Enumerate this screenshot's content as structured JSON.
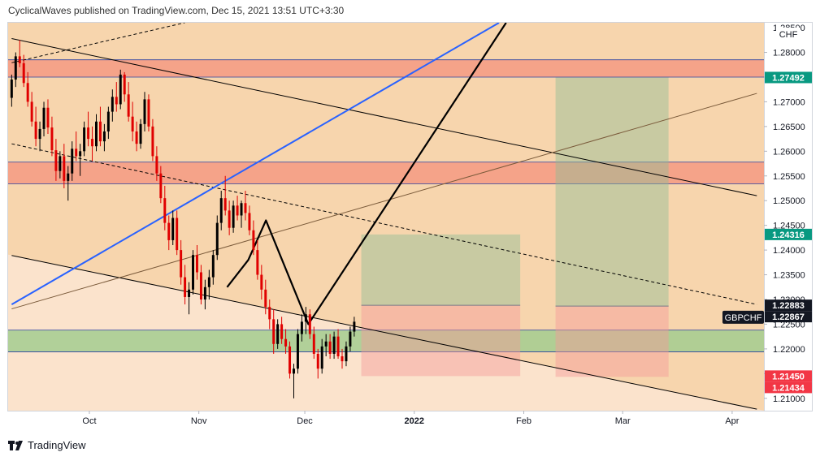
{
  "header": {
    "publisher_text": "CyclicalWaves published on TradingView.com, Dec 15, 2021 13:51 UTC+3:30"
  },
  "footer": {
    "brand": "TradingView",
    "logo_icon": "tradingview-logo-icon"
  },
  "chart_data": {
    "type": "candlestick",
    "symbol": "GBPCHF",
    "currency": "CHF",
    "top_tick_partial": "1.28500",
    "y_ticks": [
      "1.28000",
      "1.27500",
      "1.27000",
      "1.26500",
      "1.26000",
      "1.25500",
      "1.25000",
      "1.24500",
      "1.24000",
      "1.23500",
      "1.23000",
      "1.22500",
      "1.22000",
      "1.21500",
      "1.21000"
    ],
    "x_ticks": [
      {
        "label": "Oct",
        "date": "2021-10-01"
      },
      {
        "label": "Nov",
        "date": "2021-11-01"
      },
      {
        "label": "Dec",
        "date": "2021-12-01"
      },
      {
        "label": "2022",
        "date": "2022-01-01"
      },
      {
        "label": "Feb",
        "date": "2022-02-01"
      },
      {
        "label": "Mar",
        "date": "2022-03-01"
      },
      {
        "label": "Apr",
        "date": "2022-04-01"
      }
    ],
    "ylim": [
      1.2075,
      1.286
    ],
    "xlim": [
      "2021-09-08",
      "2022-04-10"
    ],
    "price_labels": [
      {
        "value": "1.27492",
        "color": "#089981"
      },
      {
        "value": "1.24316",
        "color": "#089981"
      },
      {
        "value": "1.22883",
        "color": "#131722"
      },
      {
        "value": "1.22867",
        "color": "#131722"
      },
      {
        "value": "1.21450",
        "color": "#f23645"
      },
      {
        "value": "1.21434",
        "color": "#f23645"
      }
    ],
    "symbol_label_price": 1.2264,
    "background": {
      "upper_color": "#f7d5ad",
      "lower_color": "#fbe3cc"
    },
    "zones": [
      {
        "kind": "supply",
        "from": 1.275,
        "to": 1.2785,
        "color": "#f59a83"
      },
      {
        "kind": "supply",
        "from": 1.2534,
        "to": 1.2578,
        "color": "#f59a83"
      },
      {
        "kind": "demand",
        "from": 1.2194,
        "to": 1.2238,
        "color": "#a3cd8f"
      }
    ],
    "positions": [
      {
        "start": "2021-12-17",
        "end": "2022-01-31",
        "entry": 1.22883,
        "target": 1.24316,
        "stop": 1.2145
      },
      {
        "start": "2022-02-10",
        "end": "2022-03-14",
        "entry": 1.22867,
        "target": 1.27492,
        "stop": 1.21434
      }
    ],
    "lines": [
      {
        "style": "solid",
        "color": "#000000",
        "p1": [
          "2021-09-09",
          1.2828
        ],
        "p2": [
          "2022-04-08",
          1.251
        ]
      },
      {
        "style": "solid",
        "color": "#000000",
        "p1": [
          "2021-09-09",
          1.2389
        ],
        "p2": [
          "2022-04-08",
          1.2078
        ]
      },
      {
        "style": "dashed",
        "color": "#000000",
        "p1": [
          "2021-09-09",
          1.2615
        ],
        "p2": [
          "2022-04-08",
          1.229
        ]
      },
      {
        "style": "dashed",
        "color": "#000000",
        "p1": [
          "2021-09-09",
          1.2779
        ],
        "p2": [
          "2021-10-28",
          1.286
        ]
      },
      {
        "style": "solid",
        "color": "#2962ff",
        "p1": [
          "2021-09-09",
          1.229
        ],
        "p2": [
          "2022-01-25",
          1.286
        ]
      },
      {
        "style": "solid",
        "color": "#7a5a3a",
        "p1": [
          "2021-09-09",
          1.2281
        ],
        "p2": [
          "2022-04-08",
          1.2717
        ]
      },
      {
        "style": "projection",
        "color": "#000000",
        "points": [
          [
            "2021-11-09",
            1.2325
          ],
          [
            "2021-11-15",
            1.238
          ],
          [
            "2021-11-20",
            1.246
          ],
          [
            "2021-12-02",
            1.225
          ],
          [
            "2022-01-27",
            1.286
          ]
        ]
      }
    ],
    "candles_range": {
      "start": "2021-09-09",
      "end": "2021-12-15"
    },
    "candles": [
      [
        1.2708,
        1.2755,
        1.269,
        1.2745
      ],
      [
        1.2745,
        1.28,
        1.273,
        1.2792
      ],
      [
        1.2792,
        1.2825,
        1.277,
        1.2778
      ],
      [
        1.2778,
        1.2795,
        1.273,
        1.2738
      ],
      [
        1.2738,
        1.276,
        1.269,
        1.27
      ],
      [
        1.27,
        1.272,
        1.265,
        1.266
      ],
      [
        1.266,
        1.269,
        1.261,
        1.2625
      ],
      [
        1.2625,
        1.266,
        1.26,
        1.2645
      ],
      [
        1.2645,
        1.27,
        1.263,
        1.2688
      ],
      [
        1.2688,
        1.2705,
        1.2635,
        1.2648
      ],
      [
        1.2648,
        1.267,
        1.259,
        1.2602
      ],
      [
        1.2602,
        1.2625,
        1.254,
        1.256
      ],
      [
        1.256,
        1.26,
        1.2545,
        1.259
      ],
      [
        1.259,
        1.2615,
        1.2525,
        1.254
      ],
      [
        1.254,
        1.257,
        1.25,
        1.2555
      ],
      [
        1.2555,
        1.262,
        1.254,
        1.2605
      ],
      [
        1.2605,
        1.264,
        1.258,
        1.259
      ],
      [
        1.259,
        1.2615,
        1.255,
        1.26
      ],
      [
        1.26,
        1.266,
        1.259,
        1.2648
      ],
      [
        1.2648,
        1.268,
        1.261,
        1.2625
      ],
      [
        1.2625,
        1.265,
        1.258,
        1.261
      ],
      [
        1.261,
        1.2675,
        1.26,
        1.266
      ],
      [
        1.266,
        1.269,
        1.261,
        1.262
      ],
      [
        1.262,
        1.2655,
        1.26,
        1.264
      ],
      [
        1.264,
        1.269,
        1.2625,
        1.268
      ],
      [
        1.268,
        1.2725,
        1.266,
        1.271
      ],
      [
        1.271,
        1.274,
        1.268,
        1.2695
      ],
      [
        1.2695,
        1.2765,
        1.2685,
        1.2755
      ],
      [
        1.2755,
        1.276,
        1.27,
        1.2715
      ],
      [
        1.2715,
        1.274,
        1.266,
        1.267
      ],
      [
        1.267,
        1.27,
        1.262,
        1.264
      ],
      [
        1.264,
        1.266,
        1.26,
        1.2615
      ],
      [
        1.2615,
        1.2665,
        1.2605,
        1.2655
      ],
      [
        1.2655,
        1.272,
        1.264,
        1.2705
      ],
      [
        1.2705,
        1.2715,
        1.264,
        1.265
      ],
      [
        1.265,
        1.2665,
        1.258,
        1.259
      ],
      [
        1.259,
        1.261,
        1.254,
        1.2555
      ],
      [
        1.2555,
        1.257,
        1.2495,
        1.2505
      ],
      [
        1.2505,
        1.253,
        1.244,
        1.2455
      ],
      [
        1.2455,
        1.247,
        1.24,
        1.242
      ],
      [
        1.242,
        1.248,
        1.241,
        1.2465
      ],
      [
        1.2465,
        1.248,
        1.239,
        1.24
      ],
      [
        1.24,
        1.242,
        1.233,
        1.2345
      ],
      [
        1.2345,
        1.237,
        1.229,
        1.2305
      ],
      [
        1.2305,
        1.2335,
        1.227,
        1.232
      ],
      [
        1.232,
        1.24,
        1.231,
        1.239
      ],
      [
        1.239,
        1.241,
        1.234,
        1.2355
      ],
      [
        1.2355,
        1.237,
        1.229,
        1.23
      ],
      [
        1.23,
        1.234,
        1.228,
        1.2325
      ],
      [
        1.2325,
        1.236,
        1.23,
        1.2345
      ],
      [
        1.2345,
        1.24,
        1.233,
        1.239
      ],
      [
        1.239,
        1.247,
        1.238,
        1.2455
      ],
      [
        1.2455,
        1.252,
        1.244,
        1.2505
      ],
      [
        1.2505,
        1.255,
        1.247,
        1.248
      ],
      [
        1.248,
        1.25,
        1.243,
        1.2445
      ],
      [
        1.2445,
        1.25,
        1.2435,
        1.249
      ],
      [
        1.249,
        1.251,
        1.246,
        1.247
      ],
      [
        1.247,
        1.25,
        1.2445,
        1.2495
      ],
      [
        1.2495,
        1.252,
        1.246,
        1.2475
      ],
      [
        1.2475,
        1.249,
        1.243,
        1.244
      ],
      [
        1.244,
        1.246,
        1.239,
        1.24
      ],
      [
        1.24,
        1.242,
        1.234,
        1.235
      ],
      [
        1.235,
        1.237,
        1.23,
        1.232
      ],
      [
        1.232,
        1.234,
        1.227,
        1.2285
      ],
      [
        1.2285,
        1.23,
        1.224,
        1.226
      ],
      [
        1.226,
        1.228,
        1.219,
        1.221
      ],
      [
        1.221,
        1.226,
        1.22,
        1.225
      ],
      [
        1.225,
        1.2265,
        1.221,
        1.222
      ],
      [
        1.222,
        1.224,
        1.219,
        1.2205
      ],
      [
        1.2205,
        1.2215,
        1.214,
        1.215
      ],
      [
        1.215,
        1.217,
        1.21,
        1.216
      ],
      [
        1.216,
        1.224,
        1.215,
        1.223
      ],
      [
        1.223,
        1.227,
        1.2215,
        1.2255
      ],
      [
        1.2255,
        1.2285,
        1.223,
        1.227
      ],
      [
        1.227,
        1.228,
        1.222,
        1.223
      ],
      [
        1.223,
        1.2245,
        1.218,
        1.219
      ],
      [
        1.219,
        1.22,
        1.214,
        1.216
      ],
      [
        1.216,
        1.222,
        1.215,
        1.2205
      ],
      [
        1.2205,
        1.223,
        1.2185,
        1.2215
      ],
      [
        1.2215,
        1.223,
        1.218,
        1.219
      ],
      [
        1.219,
        1.2235,
        1.218,
        1.2225
      ],
      [
        1.2225,
        1.224,
        1.218,
        1.2185
      ],
      [
        1.2185,
        1.22,
        1.216,
        1.2175
      ],
      [
        1.2175,
        1.2215,
        1.2165,
        1.2205
      ],
      [
        1.2205,
        1.2245,
        1.2195,
        1.2235
      ],
      [
        1.2235,
        1.2265,
        1.2225,
        1.2255
      ]
    ]
  }
}
